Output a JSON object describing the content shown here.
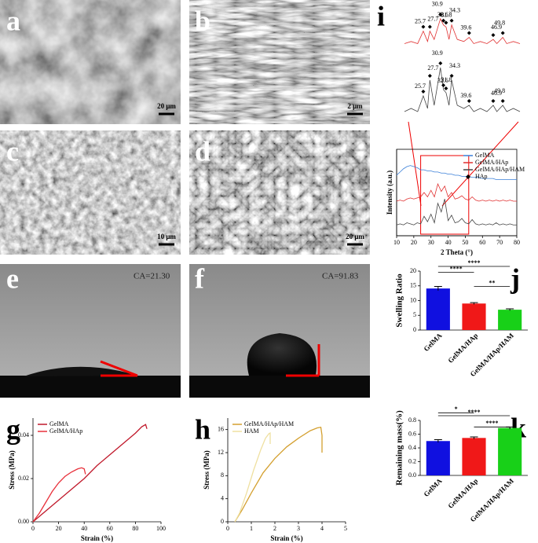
{
  "panel_letters": [
    "a",
    "b",
    "c",
    "d",
    "e",
    "f",
    "g",
    "h",
    "i",
    "j",
    "k"
  ],
  "scale_bars": [
    "20 μm",
    "2 μm",
    "10 μm",
    "20 μm"
  ],
  "contact_angles": [
    "CA=21.30",
    "CA=91.83"
  ],
  "chart_data": [
    {
      "type": "line",
      "xlabel": "Strain (%)",
      "ylabel": "Stress (MPa)",
      "xlim": [
        0,
        100
      ],
      "ylim": [
        0,
        0.048
      ],
      "xticks": [
        0,
        20,
        40,
        60,
        80,
        100
      ],
      "yticks": [
        {
          "value": 0,
          "label": "0.00"
        },
        {
          "value": 0.02,
          "label": "0.02"
        },
        {
          "value": 0.04,
          "label": "0.04"
        }
      ],
      "series": [
        {
          "name": "GelMA",
          "color": "#c0182a",
          "x": [
            0,
            10,
            20,
            30,
            40,
            50,
            60,
            70,
            80,
            85,
            88,
            89
          ],
          "values": [
            0,
            0.005,
            0.01,
            0.015,
            0.02,
            0.026,
            0.031,
            0.036,
            0.041,
            0.044,
            0.045,
            0.043
          ]
        },
        {
          "name": "GelMA/HAp",
          "color": "#e8303a",
          "x": [
            0,
            5,
            10,
            15,
            20,
            25,
            30,
            35,
            38,
            40,
            41
          ],
          "values": [
            0,
            0.004,
            0.009,
            0.014,
            0.018,
            0.021,
            0.023,
            0.0245,
            0.025,
            0.0245,
            0.022
          ]
        }
      ]
    },
    {
      "type": "line",
      "xlabel": "Strain (%)",
      "ylabel": "Stress (MPa)",
      "xlim": [
        0,
        5
      ],
      "ylim": [
        0,
        18
      ],
      "xticks": [
        0,
        1,
        2,
        3,
        4,
        5
      ],
      "yticks": [
        0,
        4,
        8,
        12,
        16
      ],
      "series": [
        {
          "name": "GelMA/HAp/HAM",
          "color": "#d4a030",
          "x": [
            0.3,
            0.6,
            1,
            1.5,
            2,
            2.5,
            3,
            3.5,
            3.8,
            3.95,
            4,
            4
          ],
          "values": [
            0,
            2,
            5,
            8.5,
            11,
            13,
            14.5,
            15.8,
            16.3,
            16.4,
            15,
            12
          ]
        },
        {
          "name": "HAM",
          "color": "#efe0a0",
          "x": [
            0.3,
            0.5,
            0.8,
            1.1,
            1.4,
            1.6,
            1.75,
            1.8,
            1.8
          ],
          "values": [
            0,
            1.5,
            5,
            9,
            12.5,
            14.5,
            15.3,
            15.4,
            13.5
          ]
        }
      ]
    },
    {
      "type": "bar",
      "ylabel": "Swelling Ratio",
      "categories": [
        "GelMA",
        "GelMA/HAp",
        "GelMA/HAp/HAM"
      ],
      "values": [
        14.1,
        9.0,
        6.9
      ],
      "errors": [
        0.7,
        0.3,
        0.3
      ],
      "colors": [
        "#1010e0",
        "#f01818",
        "#18d018"
      ],
      "ylim": [
        0,
        20
      ],
      "yticks": [
        0,
        5,
        10,
        15,
        20
      ],
      "significance": [
        {
          "from": 0,
          "to": 2,
          "label": "****"
        },
        {
          "from": 0,
          "to": 1,
          "label": "****"
        },
        {
          "from": 1,
          "to": 2,
          "label": "**"
        }
      ]
    },
    {
      "type": "bar",
      "ylabel": "Remaining mass(%)",
      "categories": [
        "GelMA",
        "GelMA/HAp",
        "GelMA/HAp/HAM"
      ],
      "values": [
        0.5,
        0.545,
        0.69
      ],
      "errors": [
        0.02,
        0.015,
        0.015
      ],
      "colors": [
        "#1010e0",
        "#f01818",
        "#18d018"
      ],
      "ylim": [
        0,
        0.8
      ],
      "yticks": [
        {
          "value": 0,
          "label": "0.0"
        },
        {
          "value": 0.2,
          "label": "0.2"
        },
        {
          "value": 0.4,
          "label": "0.4"
        },
        {
          "value": 0.6,
          "label": "0.6"
        },
        {
          "value": 0.8,
          "label": "0.8"
        }
      ],
      "significance": [
        {
          "from": 0,
          "to": 2,
          "label": "****"
        },
        {
          "from": 0,
          "to": 1,
          "label": "*"
        },
        {
          "from": 1,
          "to": 2,
          "label": "****"
        }
      ]
    },
    {
      "type": "line",
      "xlabel": "2 Theta (°)",
      "ylabel": "Intensity (a.u.)",
      "xlim": [
        10,
        80
      ],
      "ylim": [
        0,
        8
      ],
      "xticks": [
        10,
        20,
        30,
        40,
        50,
        60,
        70,
        80
      ],
      "highlight": [
        24,
        52
      ],
      "marker_legend": "HAp",
      "series": [
        {
          "name": "GelMA",
          "color": "#3a7fd8",
          "x": [
            10,
            12,
            14,
            16,
            18,
            20,
            22,
            24,
            26,
            28,
            30,
            32,
            34,
            36,
            38,
            40,
            42,
            44,
            46,
            48,
            50,
            52,
            54,
            56,
            58,
            60,
            62,
            64,
            66,
            68,
            70,
            72,
            74,
            76,
            78,
            80
          ],
          "values": [
            5.6,
            5.9,
            6.2,
            6.4,
            6.5,
            6.4,
            6.3,
            6.1,
            6.1,
            6.0,
            6.0,
            5.9,
            5.9,
            5.8,
            5.8,
            5.7,
            5.7,
            5.6,
            5.6,
            5.5,
            5.5,
            5.5,
            5.4,
            5.4,
            5.4,
            5.3,
            5.3,
            5.3,
            5.3,
            5.2,
            5.2,
            5.2,
            5.2,
            5.2,
            5.2,
            5.2
          ]
        },
        {
          "name": "GelMA/HAp",
          "color": "#e03030",
          "x": [
            10,
            12,
            14,
            16,
            18,
            20,
            22,
            24,
            26,
            28,
            30,
            32,
            34,
            36,
            38,
            40,
            42,
            44,
            46,
            48,
            50,
            52,
            54,
            56,
            58,
            60,
            62,
            64,
            66,
            68,
            70,
            72,
            74,
            76,
            78,
            80
          ],
          "values": [
            3.2,
            3.3,
            3.2,
            3.4,
            3.5,
            3.4,
            3.5,
            3.6,
            4.0,
            3.6,
            4.2,
            3.6,
            4.8,
            4.1,
            4.6,
            3.6,
            4.0,
            3.4,
            3.5,
            3.7,
            3.4,
            3.3,
            3.6,
            3.3,
            3.2,
            3.3,
            3.2,
            3.3,
            3.2,
            3.3,
            3.2,
            3.3,
            3.2,
            3.3,
            3.2,
            3.2
          ]
        },
        {
          "name": "GelMA/HAp/HAM",
          "color": "#444444",
          "x": [
            10,
            12,
            14,
            16,
            18,
            20,
            22,
            24,
            26,
            28,
            30,
            32,
            34,
            36,
            38,
            40,
            42,
            44,
            46,
            48,
            50,
            52,
            54,
            56,
            58,
            60,
            62,
            64,
            66,
            68,
            70,
            72,
            74,
            76,
            78,
            80
          ],
          "values": [
            1.0,
            1.1,
            1.0,
            1.2,
            1.1,
            1.0,
            1.2,
            1.1,
            1.8,
            1.3,
            2.0,
            1.2,
            3.0,
            2.2,
            3.4,
            1.4,
            1.9,
            1.2,
            1.3,
            1.6,
            1.2,
            1.1,
            1.5,
            1.1,
            1.0,
            1.1,
            1.0,
            1.1,
            1.0,
            1.2,
            1.0,
            1.1,
            1.0,
            1.1,
            1.0,
            1.0
          ]
        }
      ]
    },
    {
      "type": "line",
      "xlim": [
        20,
        55
      ],
      "ylim": [
        0,
        11
      ],
      "series": [
        {
          "color": "#e03030",
          "x": [
            20,
            22,
            24,
            25.7,
            27,
            27.7,
            29,
            30.9,
            31.8,
            32.6,
            33.5,
            34.3,
            36,
            38,
            39.6,
            41,
            43,
            45,
            46.9,
            48,
            49.8,
            51,
            53,
            55
          ],
          "values": [
            2,
            2.5,
            2,
            5,
            2.5,
            5,
            3,
            8,
            6.5,
            6,
            3,
            6.5,
            3,
            2.5,
            3.5,
            2,
            2.5,
            2,
            3,
            2,
            3.5,
            2,
            2.5,
            2
          ]
        }
      ],
      "annotations": [
        {
          "x": 25.7,
          "label": "25.7"
        },
        {
          "x": 27.7,
          "label": "27.7"
        },
        {
          "x": 30.9,
          "label": "30.9"
        },
        {
          "x": 31.8,
          "label": "31.8"
        },
        {
          "x": 32.6,
          "label": "32.6"
        },
        {
          "x": 34.3,
          "label": "34.3"
        },
        {
          "x": 39.6,
          "label": "39.6"
        },
        {
          "x": 46.9,
          "label": "46.9"
        },
        {
          "x": 49.8,
          "label": "49.8"
        }
      ]
    },
    {
      "type": "line",
      "xlim": [
        20,
        55
      ],
      "ylim": [
        0,
        11
      ],
      "series": [
        {
          "color": "#444444",
          "x": [
            20,
            22,
            24,
            25.7,
            27,
            27.7,
            29,
            30.9,
            31.8,
            32.6,
            33.5,
            34.3,
            36,
            38,
            39.6,
            41,
            43,
            45,
            46.9,
            48,
            49.8,
            51,
            53,
            55
          ],
          "values": [
            2,
            2.5,
            2,
            4.5,
            2.5,
            7,
            3,
            9,
            5.5,
            5,
            3,
            7,
            3,
            2.5,
            3,
            2,
            2.5,
            2,
            3,
            2,
            3,
            2,
            2.5,
            2
          ]
        }
      ],
      "annotations": [
        {
          "x": 25.7,
          "label": "25.7"
        },
        {
          "x": 27.7,
          "label": "27.7"
        },
        {
          "x": 30.9,
          "label": "30.9"
        },
        {
          "x": 31.8,
          "label": "31.8"
        },
        {
          "x": 32.6,
          "label": "32.6"
        },
        {
          "x": 34.3,
          "label": "34.3"
        },
        {
          "x": 39.6,
          "label": "39.6"
        },
        {
          "x": 46.9,
          "label": "46.9"
        },
        {
          "x": 49.8,
          "label": "49.8"
        }
      ]
    }
  ]
}
